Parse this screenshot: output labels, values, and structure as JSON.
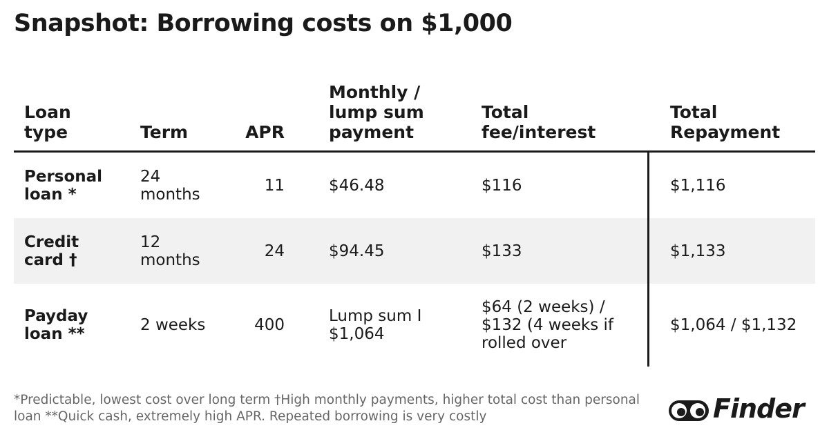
{
  "header": {
    "title": "Snapshot: Borrowing costs on $1,000"
  },
  "table": {
    "columns": [
      "Loan type",
      "Term",
      "APR",
      "Monthly / lump sum payment",
      "Total fee/interest",
      "Total Repayment"
    ],
    "rows": [
      [
        "Personal loan *",
        "24 months",
        11,
        "$46.48",
        "$116",
        "$1,116"
      ],
      [
        "Credit card †",
        "12 months",
        24,
        "$94.45",
        "$133",
        "$1,133"
      ],
      [
        "Payday loan **",
        "2 weeks",
        400,
        "Lump sum I $1,064",
        "$64 (2 weeks) / $132 (4 weeks if rolled over",
        "$1,064 / $1,132"
      ]
    ]
  },
  "footer": {
    "note": "*Predictable, lowest cost over long term †High monthly payments, higher total cost than personal loan **Quick cash, extremely high APR. Repeated borrowing is very costly",
    "logo": "Finder"
  }
}
